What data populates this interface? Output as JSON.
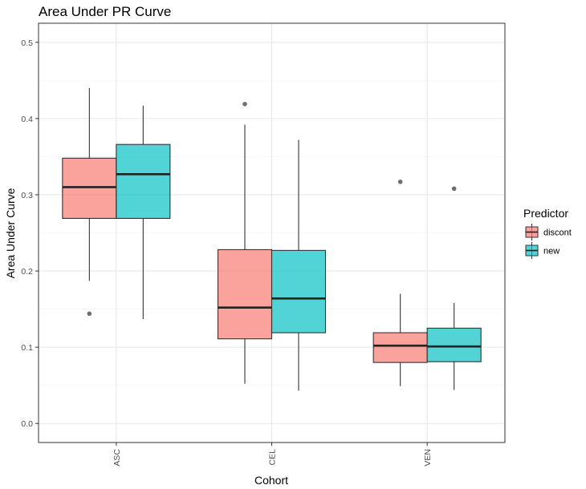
{
  "chart_data": {
    "type": "boxplot",
    "title": "Area Under PR Curve",
    "xlabel": "Cohort",
    "ylabel": "Area Under Curve",
    "categories": [
      "ASC",
      "CEL",
      "VEN"
    ],
    "ylim": [
      -0.025,
      0.525
    ],
    "yticks": [
      "0.0",
      "0.1",
      "0.2",
      "0.3",
      "0.4",
      "0.5"
    ],
    "grid": true,
    "legend": {
      "title": "Predictor",
      "position": "right"
    },
    "series": [
      {
        "name": "discont",
        "color": "#F8766D",
        "boxes": [
          {
            "category": "ASC",
            "whisker_low": 0.187,
            "q1": 0.269,
            "median": 0.31,
            "q3": 0.348,
            "whisker_high": 0.44,
            "outliers": [
              0.144
            ]
          },
          {
            "category": "CEL",
            "whisker_low": 0.052,
            "q1": 0.111,
            "median": 0.152,
            "q3": 0.228,
            "whisker_high": 0.392,
            "outliers": [
              0.419
            ]
          },
          {
            "category": "VEN",
            "whisker_low": 0.049,
            "q1": 0.08,
            "median": 0.102,
            "q3": 0.119,
            "whisker_high": 0.17,
            "outliers": [
              0.317
            ]
          }
        ]
      },
      {
        "name": "new",
        "color": "#00BFC4",
        "boxes": [
          {
            "category": "ASC",
            "whisker_low": 0.137,
            "q1": 0.269,
            "median": 0.327,
            "q3": 0.366,
            "whisker_high": 0.417,
            "outliers": []
          },
          {
            "category": "CEL",
            "whisker_low": 0.043,
            "q1": 0.119,
            "median": 0.164,
            "q3": 0.227,
            "whisker_high": 0.372,
            "outliers": []
          },
          {
            "category": "VEN",
            "whisker_low": 0.044,
            "q1": 0.081,
            "median": 0.101,
            "q3": 0.125,
            "whisker_high": 0.158,
            "outliers": [
              0.308
            ]
          }
        ]
      }
    ]
  }
}
